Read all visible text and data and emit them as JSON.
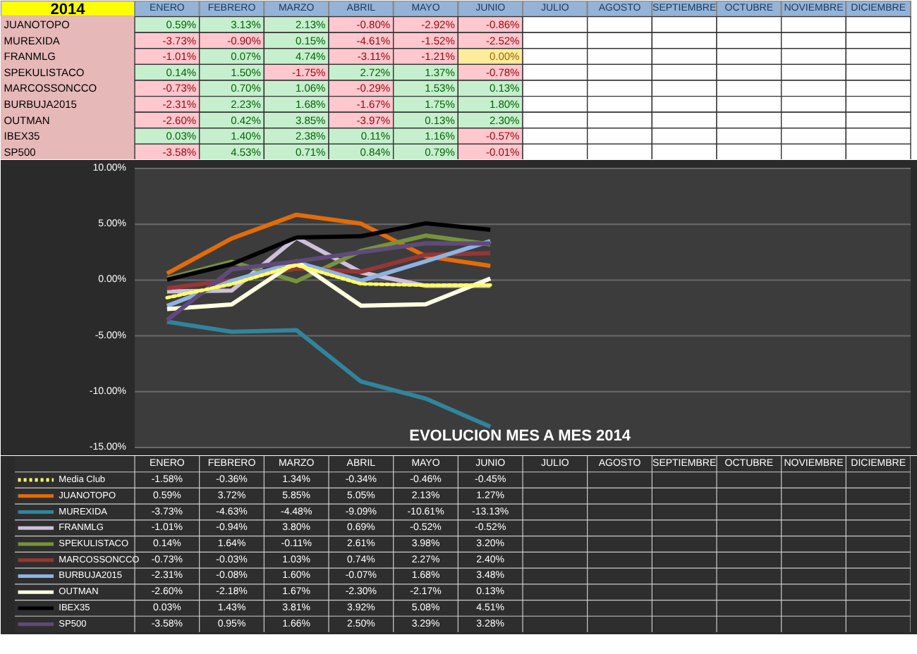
{
  "chart_data": [
    {
      "type": "heatmap",
      "title": "2014",
      "categories": [
        "ENERO",
        "FEBRERO",
        "MARZO",
        "ABRIL",
        "MAYO",
        "JUNIO",
        "JULIO",
        "AGOSTO",
        "SEPTIEMBRE",
        "OCTUBRE",
        "NOVIEMBRE",
        "DICIEMBRE"
      ],
      "y_categories": [
        "JUANOTOPO",
        "MUREXIDA",
        "FRANMLG",
        "SPEKULISTACO",
        "MARCOSSONCCO",
        "BURBUJA2015",
        "OUTMAN",
        "IBEX35",
        "SP500"
      ],
      "cells": [
        [
          0.59,
          3.13,
          2.13,
          -0.8,
          -2.92,
          -0.86,
          null,
          null,
          null,
          null,
          null,
          null
        ],
        [
          -3.73,
          -0.9,
          0.15,
          -4.61,
          -1.52,
          -2.52,
          null,
          null,
          null,
          null,
          null,
          null
        ],
        [
          -1.01,
          0.07,
          4.74,
          -3.11,
          -1.21,
          0.0,
          null,
          null,
          null,
          null,
          null,
          null
        ],
        [
          0.14,
          1.5,
          -1.75,
          2.72,
          1.37,
          -0.78,
          null,
          null,
          null,
          null,
          null,
          null
        ],
        [
          -0.73,
          0.7,
          1.06,
          -0.29,
          1.53,
          0.13,
          null,
          null,
          null,
          null,
          null,
          null
        ],
        [
          -2.31,
          2.23,
          1.68,
          -1.67,
          1.75,
          1.8,
          null,
          null,
          null,
          null,
          null,
          null
        ],
        [
          -2.6,
          0.42,
          3.85,
          -3.97,
          0.13,
          2.3,
          null,
          null,
          null,
          null,
          null,
          null
        ],
        [
          0.03,
          1.4,
          2.38,
          0.11,
          1.16,
          -0.57,
          null,
          null,
          null,
          null,
          null,
          null
        ],
        [
          -3.58,
          4.53,
          0.71,
          0.84,
          0.79,
          -0.01,
          null,
          null,
          null,
          null,
          null,
          null
        ]
      ],
      "cell_labels": [
        [
          "0.59%",
          "3.13%",
          "2.13%",
          "-0.80%",
          "-2.92%",
          "-0.86%",
          null,
          null,
          null,
          null,
          null,
          null
        ],
        [
          "-3.73%",
          "-0.90%",
          "0.15%",
          "-4.61%",
          "-1.52%",
          "-2.52%",
          null,
          null,
          null,
          null,
          null,
          null
        ],
        [
          "-1.01%",
          "0.07%",
          "4.74%",
          "-3.11%",
          "-1.21%",
          "0.00%",
          null,
          null,
          null,
          null,
          null,
          null
        ],
        [
          "0.14%",
          "1.50%",
          "-1.75%",
          "2.72%",
          "1.37%",
          "-0.78%",
          null,
          null,
          null,
          null,
          null,
          null
        ],
        [
          "-0.73%",
          "0.70%",
          "1.06%",
          "-0.29%",
          "1.53%",
          "0.13%",
          null,
          null,
          null,
          null,
          null,
          null
        ],
        [
          "-2.31%",
          "2.23%",
          "1.68%",
          "-1.67%",
          "1.75%",
          "1.80%",
          null,
          null,
          null,
          null,
          null,
          null
        ],
        [
          "-2.60%",
          "0.42%",
          "3.85%",
          "-3.97%",
          "0.13%",
          "2.30%",
          null,
          null,
          null,
          null,
          null,
          null
        ],
        [
          "0.03%",
          "1.40%",
          "2.38%",
          "0.11%",
          "1.16%",
          "-0.57%",
          null,
          null,
          null,
          null,
          null,
          null
        ],
        [
          "-3.58%",
          "4.53%",
          "0.71%",
          "0.84%",
          "0.79%",
          "-0.01%",
          null,
          null,
          null,
          null,
          null,
          null
        ]
      ]
    },
    {
      "type": "line",
      "title": "EVOLUCION  MES A MES 2014",
      "categories": [
        "ENERO",
        "FEBRERO",
        "MARZO",
        "ABRIL",
        "MAYO",
        "JUNIO",
        "JULIO",
        "AGOSTO",
        "SEPTIEMBRE",
        "OCTUBRE",
        "NOVIEMBRE",
        "DICIEMBRE"
      ],
      "ylim": [
        -15,
        10
      ],
      "yticks": [
        {
          "value": -15,
          "label": "-15.00%"
        },
        {
          "value": -10,
          "label": "-10.00%"
        },
        {
          "value": -5,
          "label": "-5.00%"
        },
        {
          "value": 0,
          "label": "0.00%"
        },
        {
          "value": 5,
          "label": "5.00%"
        },
        {
          "value": 10,
          "label": "10.00%"
        }
      ],
      "grid": "y",
      "legend": "bottom",
      "marker": "none",
      "series": [
        {
          "name": "Media Club",
          "color": "#ffff66",
          "line_style": "dotted",
          "values": [
            -1.58,
            -0.36,
            1.34,
            -0.34,
            -0.46,
            -0.45,
            null,
            null,
            null,
            null,
            null,
            null
          ],
          "value_labels": [
            "-1.58%",
            "-0.36%",
            "1.34%",
            "-0.34%",
            "-0.46%",
            "-0.45%",
            null,
            null,
            null,
            null,
            null,
            null
          ]
        },
        {
          "name": "JUANOTOPO",
          "color": "#e36c09",
          "values": [
            0.59,
            3.72,
            5.85,
            5.05,
            2.13,
            1.27,
            null,
            null,
            null,
            null,
            null,
            null
          ],
          "value_labels": [
            "0.59%",
            "3.72%",
            "5.85%",
            "5.05%",
            "2.13%",
            "1.27%",
            null,
            null,
            null,
            null,
            null,
            null
          ]
        },
        {
          "name": "MUREXIDA",
          "color": "#31849b",
          "values": [
            -3.73,
            -4.63,
            -4.48,
            -9.09,
            -10.61,
            -13.13,
            null,
            null,
            null,
            null,
            null,
            null
          ],
          "value_labels": [
            "-3.73%",
            "-4.63%",
            "-4.48%",
            "-9.09%",
            "-10.61%",
            "-13.13%",
            null,
            null,
            null,
            null,
            null,
            null
          ]
        },
        {
          "name": "FRANMLG",
          "color": "#ccc0da",
          "values": [
            -1.01,
            -0.94,
            3.8,
            0.69,
            -0.52,
            -0.52,
            null,
            null,
            null,
            null,
            null,
            null
          ],
          "value_labels": [
            "-1.01%",
            "-0.94%",
            "3.80%",
            "0.69%",
            "-0.52%",
            "-0.52%",
            null,
            null,
            null,
            null,
            null,
            null
          ]
        },
        {
          "name": "SPEKULISTACO",
          "color": "#77933c",
          "values": [
            0.14,
            1.64,
            -0.11,
            2.61,
            3.98,
            3.2,
            null,
            null,
            null,
            null,
            null,
            null
          ],
          "value_labels": [
            "0.14%",
            "1.64%",
            "-0.11%",
            "2.61%",
            "3.98%",
            "3.20%",
            null,
            null,
            null,
            null,
            null,
            null
          ]
        },
        {
          "name": "MARCOSSONCCO",
          "color": "#953735",
          "values": [
            -0.73,
            -0.03,
            1.03,
            0.74,
            2.27,
            2.4,
            null,
            null,
            null,
            null,
            null,
            null
          ],
          "value_labels": [
            "-0.73%",
            "-0.03%",
            "1.03%",
            "0.74%",
            "2.27%",
            "2.40%",
            null,
            null,
            null,
            null,
            null,
            null
          ]
        },
        {
          "name": "BURBUJA2015",
          "color": "#8db3e2",
          "values": [
            -2.31,
            -0.08,
            1.6,
            -0.07,
            1.68,
            3.48,
            null,
            null,
            null,
            null,
            null,
            null
          ],
          "value_labels": [
            "-2.31%",
            "-0.08%",
            "1.60%",
            "-0.07%",
            "1.68%",
            "3.48%",
            null,
            null,
            null,
            null,
            null,
            null
          ]
        },
        {
          "name": "OUTMAN",
          "color": "#ffffe0",
          "values": [
            -2.6,
            -2.18,
            1.67,
            -2.3,
            -2.17,
            0.13,
            null,
            null,
            null,
            null,
            null,
            null
          ],
          "value_labels": [
            "-2.60%",
            "-2.18%",
            "1.67%",
            "-2.30%",
            "-2.17%",
            "0.13%",
            null,
            null,
            null,
            null,
            null,
            null
          ]
        },
        {
          "name": "IBEX35",
          "color": "#000000",
          "values": [
            0.03,
            1.43,
            3.81,
            3.92,
            5.08,
            4.51,
            null,
            null,
            null,
            null,
            null,
            null
          ],
          "value_labels": [
            "0.03%",
            "1.43%",
            "3.81%",
            "3.92%",
            "5.08%",
            "4.51%",
            null,
            null,
            null,
            null,
            null,
            null
          ]
        },
        {
          "name": "SP500",
          "color": "#604a7b",
          "values": [
            -3.58,
            0.95,
            1.66,
            2.5,
            3.29,
            3.28,
            null,
            null,
            null,
            null,
            null,
            null
          ],
          "value_labels": [
            "-3.58%",
            "0.95%",
            "1.66%",
            "2.50%",
            "3.29%",
            "3.28%",
            null,
            null,
            null,
            null,
            null,
            null
          ]
        }
      ]
    }
  ]
}
